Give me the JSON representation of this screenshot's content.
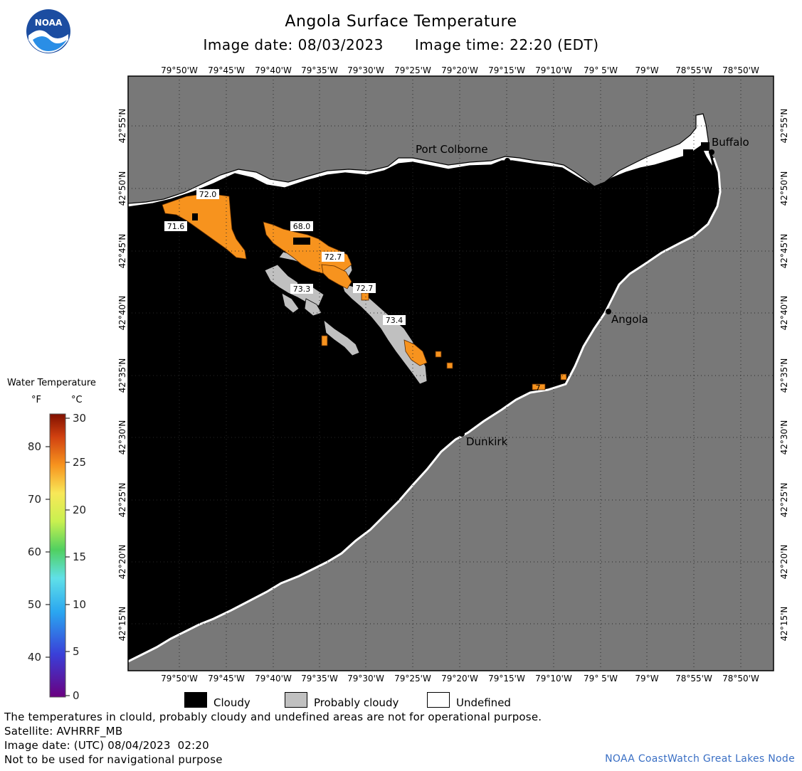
{
  "header": {
    "title": "Angola Surface Temperature",
    "image_date": "Image date: 08/03/2023",
    "image_time": "Image time: 22:20 (EDT)"
  },
  "logo": {
    "text": "NOAA",
    "icon": "noaa-logo-icon"
  },
  "map": {
    "lon_labels": [
      "79°50'W",
      "79°45'W",
      "79°40'W",
      "79°35'W",
      "79°30'W",
      "79°25'W",
      "79°20'W",
      "79°15'W",
      "79°10'W",
      "79° 5'W",
      "79°W",
      "78°55'W",
      "78°50'W"
    ],
    "lat_labels": [
      "42°55'N",
      "42°50'N",
      "42°45'N",
      "42°40'N",
      "42°35'N",
      "42°30'N",
      "42°25'N",
      "42°20'N",
      "42°15'N"
    ],
    "cities": [
      "Port Colborne",
      "Buffalo",
      "Angola",
      "Dunkirk"
    ],
    "temperature_labels": [
      "72.0",
      "71.6",
      "68.0",
      "72.7",
      "73.3",
      "72.7",
      "73.4",
      "7"
    ],
    "colors": {
      "land": "#787878",
      "cloudy": "#000000",
      "probably_cloudy": "#c0c0c0",
      "undefined": "#ffffff",
      "warm_water": "#f7931e"
    }
  },
  "legend": {
    "title": "Water Temperature",
    "unit_f": "°F",
    "unit_c": "°C",
    "scale_f": [
      "80",
      "70",
      "60",
      "50",
      "40"
    ],
    "scale_c": [
      "30",
      "25",
      "20",
      "15",
      "10",
      "5",
      "0"
    ]
  },
  "key": {
    "cloudy": "Cloudy",
    "probably_cloudy": "Probably cloudy",
    "undefined": "Undefined"
  },
  "footer": {
    "disclaimer": "The temperatures in clould, probably cloudy and undefined areas are not for operational purpose.",
    "satellite": "Satellite: AVHRRF_MB",
    "utc_date": "Image date: (UTC) 08/04/2023  02:20",
    "navigation": "Not to be used for navigational purpose",
    "credit": "NOAA CoastWatch Great Lakes Node"
  }
}
